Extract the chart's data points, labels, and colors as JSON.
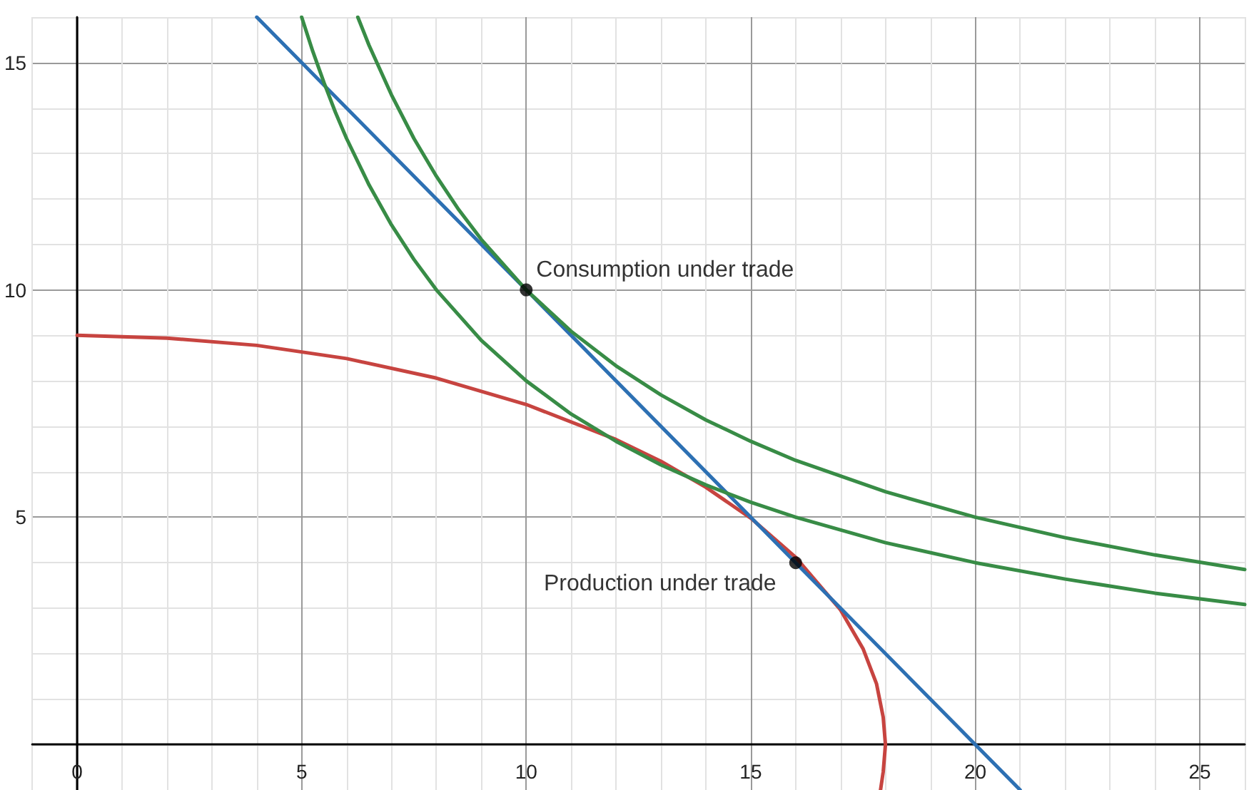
{
  "chart_data": {
    "type": "line",
    "xlim": [
      -1,
      26
    ],
    "ylim": [
      -1,
      16
    ],
    "xticks": [
      0,
      5,
      10,
      15,
      20,
      25
    ],
    "yticks": [
      5,
      10,
      15
    ],
    "grid": true,
    "marker": "none",
    "line_style": "solid",
    "series": [
      {
        "color": "#c74440",
        "x": [
          0,
          2,
          4,
          6,
          8,
          10,
          12,
          13,
          14,
          15,
          16,
          17,
          17.5,
          17.8,
          17.95,
          18,
          17.95,
          17.89
        ],
        "values": [
          9,
          8.94,
          8.78,
          8.49,
          8.06,
          7.48,
          6.71,
          6.23,
          5.66,
          4.98,
          4.12,
          2.96,
          2.11,
          1.34,
          0.6,
          0,
          -0.6,
          -1
        ]
      },
      {
        "color": "#2d70b3",
        "x": [
          4,
          10,
          16,
          21
        ],
        "values": [
          16,
          10,
          4,
          -1
        ]
      },
      {
        "color": "#388c46",
        "x": [
          5,
          5.25,
          5.5,
          5.75,
          6,
          6.5,
          7,
          7.5,
          8,
          9,
          10,
          11,
          12,
          13,
          14,
          15,
          16,
          18,
          20,
          22,
          24,
          26
        ],
        "values": [
          16,
          15.24,
          14.55,
          13.91,
          13.33,
          12.31,
          11.43,
          10.67,
          10,
          8.89,
          8,
          7.27,
          6.67,
          6.15,
          5.71,
          5.33,
          5,
          4.44,
          4,
          3.64,
          3.33,
          3.08
        ]
      },
      {
        "color": "#388c46",
        "x": [
          6.25,
          6.5,
          7,
          7.5,
          8,
          8.5,
          9,
          10,
          11,
          12,
          13,
          14,
          15,
          16,
          18,
          20,
          22,
          24,
          26
        ],
        "values": [
          16,
          15.38,
          14.29,
          13.33,
          12.5,
          11.76,
          11.11,
          10,
          9.09,
          8.33,
          7.69,
          7.14,
          6.67,
          6.25,
          5.56,
          5,
          4.55,
          4.17,
          3.85
        ]
      },
      {
        "type": "scatter",
        "marker": "circle",
        "color": "#000000",
        "x": [
          10,
          16
        ],
        "values": [
          10,
          4
        ]
      }
    ],
    "annotations": [
      {
        "text": "Consumption under trade",
        "x": 10,
        "y": 10
      },
      {
        "text": "Production under trade",
        "x": 16,
        "y": 4
      }
    ]
  }
}
